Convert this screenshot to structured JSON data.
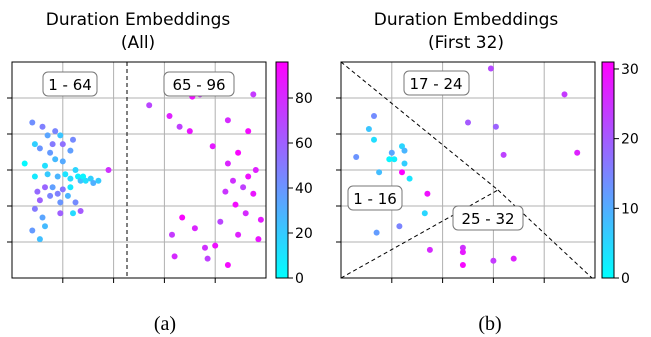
{
  "chart_data": [
    {
      "type": "scatter",
      "title": "Duration Embeddings",
      "subtitle": "(All)",
      "caption": "(a)",
      "colorbar": {
        "ticks": [
          0,
          20,
          40,
          60,
          80
        ],
        "range": [
          0,
          96
        ],
        "colors": [
          "#00ffff",
          "#ff00ff"
        ]
      },
      "regions": [
        "1 - 64",
        "65 - 96"
      ],
      "grid": true,
      "points": [
        {
          "x": 0.05,
          "y": 0.53,
          "c": 2
        },
        {
          "x": 0.09,
          "y": 0.47,
          "c": 8
        },
        {
          "x": 0.08,
          "y": 0.72,
          "c": 42
        },
        {
          "x": 0.11,
          "y": 0.6,
          "c": 40
        },
        {
          "x": 0.12,
          "y": 0.7,
          "c": 48
        },
        {
          "x": 0.14,
          "y": 0.66,
          "c": 34
        },
        {
          "x": 0.09,
          "y": 0.62,
          "c": 18
        },
        {
          "x": 0.16,
          "y": 0.62,
          "c": 50
        },
        {
          "x": 0.15,
          "y": 0.58,
          "c": 38
        },
        {
          "x": 0.17,
          "y": 0.68,
          "c": 46
        },
        {
          "x": 0.19,
          "y": 0.66,
          "c": 22
        },
        {
          "x": 0.2,
          "y": 0.62,
          "c": 54
        },
        {
          "x": 0.23,
          "y": 0.59,
          "c": 36
        },
        {
          "x": 0.24,
          "y": 0.64,
          "c": 44
        },
        {
          "x": 0.13,
          "y": 0.52,
          "c": 12
        },
        {
          "x": 0.14,
          "y": 0.48,
          "c": 20
        },
        {
          "x": 0.17,
          "y": 0.55,
          "c": 26
        },
        {
          "x": 0.18,
          "y": 0.47,
          "c": 28
        },
        {
          "x": 0.2,
          "y": 0.54,
          "c": 32
        },
        {
          "x": 0.21,
          "y": 0.48,
          "c": 10
        },
        {
          "x": 0.23,
          "y": 0.46,
          "c": 14
        },
        {
          "x": 0.25,
          "y": 0.5,
          "c": 16
        },
        {
          "x": 0.26,
          "y": 0.47,
          "c": 6
        },
        {
          "x": 0.27,
          "y": 0.45,
          "c": 24
        },
        {
          "x": 0.28,
          "y": 0.47,
          "c": 4
        },
        {
          "x": 0.29,
          "y": 0.45,
          "c": 12
        },
        {
          "x": 0.31,
          "y": 0.46,
          "c": 18
        },
        {
          "x": 0.32,
          "y": 0.44,
          "c": 30
        },
        {
          "x": 0.34,
          "y": 0.45,
          "c": 20
        },
        {
          "x": 0.1,
          "y": 0.4,
          "c": 56
        },
        {
          "x": 0.11,
          "y": 0.36,
          "c": 60
        },
        {
          "x": 0.13,
          "y": 0.42,
          "c": 58
        },
        {
          "x": 0.15,
          "y": 0.38,
          "c": 46
        },
        {
          "x": 0.16,
          "y": 0.42,
          "c": 36
        },
        {
          "x": 0.18,
          "y": 0.39,
          "c": 48
        },
        {
          "x": 0.19,
          "y": 0.35,
          "c": 40
        },
        {
          "x": 0.2,
          "y": 0.41,
          "c": 52
        },
        {
          "x": 0.22,
          "y": 0.38,
          "c": 28
        },
        {
          "x": 0.23,
          "y": 0.42,
          "c": 8
        },
        {
          "x": 0.25,
          "y": 0.35,
          "c": 44
        },
        {
          "x": 0.09,
          "y": 0.32,
          "c": 50
        },
        {
          "x": 0.12,
          "y": 0.28,
          "c": 34
        },
        {
          "x": 0.08,
          "y": 0.22,
          "c": 38
        },
        {
          "x": 0.13,
          "y": 0.24,
          "c": 26
        },
        {
          "x": 0.19,
          "y": 0.3,
          "c": 60
        },
        {
          "x": 0.24,
          "y": 0.3,
          "c": 14
        },
        {
          "x": 0.27,
          "y": 0.31,
          "c": 62
        },
        {
          "x": 0.11,
          "y": 0.18,
          "c": 24
        },
        {
          "x": 0.38,
          "y": 0.5,
          "c": 78
        },
        {
          "x": 0.54,
          "y": 0.8,
          "c": 70
        },
        {
          "x": 0.62,
          "y": 0.75,
          "c": 84
        },
        {
          "x": 0.66,
          "y": 0.7,
          "c": 72
        },
        {
          "x": 0.71,
          "y": 0.84,
          "c": 90
        },
        {
          "x": 0.74,
          "y": 0.85,
          "c": 76
        },
        {
          "x": 0.7,
          "y": 0.68,
          "c": 88
        },
        {
          "x": 0.85,
          "y": 0.73,
          "c": 80
        },
        {
          "x": 0.93,
          "y": 0.68,
          "c": 92
        },
        {
          "x": 0.95,
          "y": 0.85,
          "c": 74
        },
        {
          "x": 0.79,
          "y": 0.61,
          "c": 86
        },
        {
          "x": 0.85,
          "y": 0.53,
          "c": 82
        },
        {
          "x": 0.89,
          "y": 0.58,
          "c": 94
        },
        {
          "x": 0.87,
          "y": 0.45,
          "c": 78
        },
        {
          "x": 0.93,
          "y": 0.47,
          "c": 90
        },
        {
          "x": 0.96,
          "y": 0.5,
          "c": 84
        },
        {
          "x": 0.91,
          "y": 0.42,
          "c": 72
        },
        {
          "x": 0.95,
          "y": 0.39,
          "c": 88
        },
        {
          "x": 0.84,
          "y": 0.4,
          "c": 76
        },
        {
          "x": 0.88,
          "y": 0.34,
          "c": 92
        },
        {
          "x": 0.92,
          "y": 0.3,
          "c": 80
        },
        {
          "x": 0.98,
          "y": 0.27,
          "c": 86
        },
        {
          "x": 0.82,
          "y": 0.26,
          "c": 70
        },
        {
          "x": 0.67,
          "y": 0.28,
          "c": 94
        },
        {
          "x": 0.63,
          "y": 0.2,
          "c": 74
        },
        {
          "x": 0.72,
          "y": 0.23,
          "c": 82
        },
        {
          "x": 0.8,
          "y": 0.15,
          "c": 90
        },
        {
          "x": 0.76,
          "y": 0.14,
          "c": 78
        },
        {
          "x": 0.89,
          "y": 0.2,
          "c": 84
        },
        {
          "x": 0.97,
          "y": 0.18,
          "c": 88
        },
        {
          "x": 0.64,
          "y": 0.1,
          "c": 80
        },
        {
          "x": 0.77,
          "y": 0.09,
          "c": 72
        },
        {
          "x": 0.85,
          "y": 0.06,
          "c": 92
        }
      ]
    },
    {
      "type": "scatter",
      "title": "Duration Embeddings",
      "subtitle": "(First 32)",
      "caption": "(b)",
      "colorbar": {
        "ticks": [
          0,
          10,
          20,
          30
        ],
        "range": [
          0,
          31
        ],
        "colors": [
          "#00ffff",
          "#ff00ff"
        ]
      },
      "regions": [
        "17 - 24",
        "1 - 16",
        "25 - 32"
      ],
      "grid": true,
      "points": [
        {
          "x": 0.59,
          "y": 0.97,
          "c": 22
        },
        {
          "x": 0.88,
          "y": 0.85,
          "c": 24
        },
        {
          "x": 0.5,
          "y": 0.72,
          "c": 20
        },
        {
          "x": 0.61,
          "y": 0.7,
          "c": 19
        },
        {
          "x": 0.64,
          "y": 0.57,
          "c": 23
        },
        {
          "x": 0.93,
          "y": 0.58,
          "c": 27
        },
        {
          "x": 0.11,
          "y": 0.69,
          "c": 7
        },
        {
          "x": 0.13,
          "y": 0.75,
          "c": 14
        },
        {
          "x": 0.06,
          "y": 0.56,
          "c": 13
        },
        {
          "x": 0.13,
          "y": 0.64,
          "c": 4
        },
        {
          "x": 0.2,
          "y": 0.58,
          "c": 11
        },
        {
          "x": 0.24,
          "y": 0.61,
          "c": 5
        },
        {
          "x": 0.25,
          "y": 0.59,
          "c": 9
        },
        {
          "x": 0.21,
          "y": 0.55,
          "c": 2
        },
        {
          "x": 0.25,
          "y": 0.53,
          "c": 6
        },
        {
          "x": 0.19,
          "y": 0.55,
          "c": 1
        },
        {
          "x": 0.15,
          "y": 0.49,
          "c": 8
        },
        {
          "x": 0.24,
          "y": 0.49,
          "c": 31
        },
        {
          "x": 0.27,
          "y": 0.46,
          "c": 3
        },
        {
          "x": 0.34,
          "y": 0.39,
          "c": 29
        },
        {
          "x": 0.33,
          "y": 0.3,
          "c": 5
        },
        {
          "x": 0.23,
          "y": 0.24,
          "c": 15
        },
        {
          "x": 0.14,
          "y": 0.21,
          "c": 12
        },
        {
          "x": 0.35,
          "y": 0.13,
          "c": 26
        },
        {
          "x": 0.48,
          "y": 0.14,
          "c": 25
        },
        {
          "x": 0.48,
          "y": 0.12,
          "c": 28
        },
        {
          "x": 0.6,
          "y": 0.08,
          "c": 24
        },
        {
          "x": 0.68,
          "y": 0.09,
          "c": 27
        },
        {
          "x": 0.48,
          "y": 0.06,
          "c": 30
        }
      ]
    }
  ]
}
